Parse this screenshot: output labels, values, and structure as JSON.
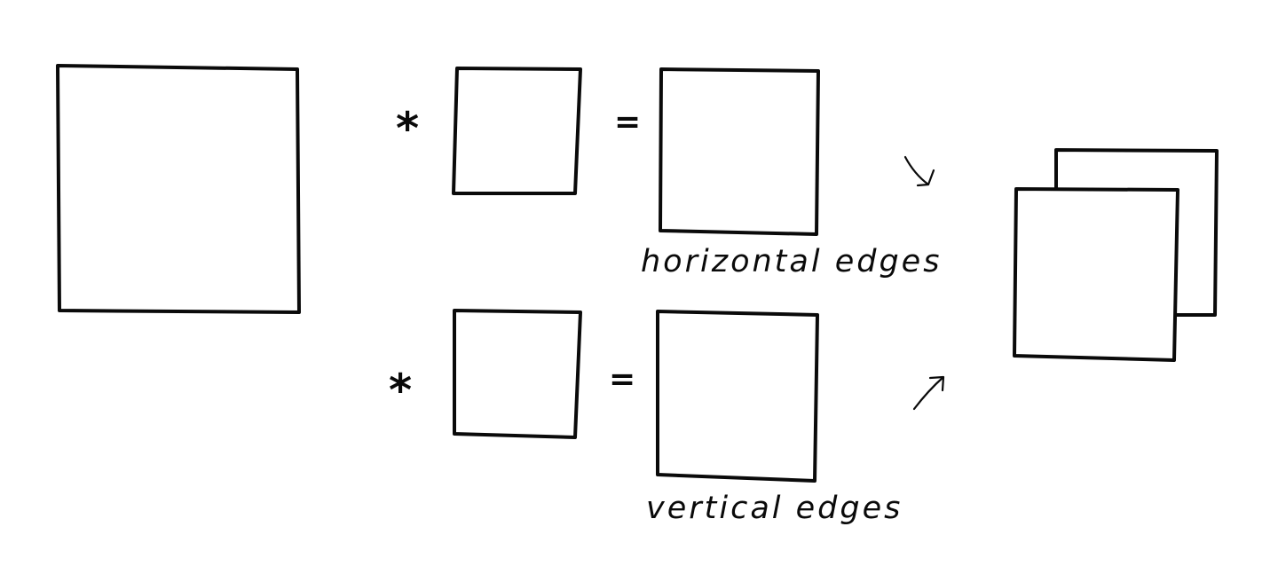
{
  "diagram": {
    "operators": {
      "convolve_top": "*",
      "convolve_bottom": "*",
      "equals_top": "=",
      "equals_bottom": "="
    },
    "labels": {
      "horizontal_output": "horizontal edges",
      "vertical_output": "vertical edges"
    },
    "stroke_color": "#0a0a0a",
    "background_color": "#ffffff"
  }
}
